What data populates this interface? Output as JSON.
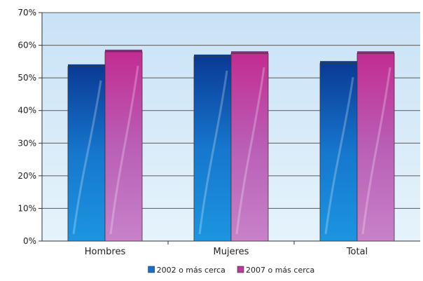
{
  "chart_data": {
    "type": "bar",
    "categories": [
      "Hombres",
      "Mujeres",
      "Total"
    ],
    "series": [
      {
        "name": "2002 o más cerca",
        "values": [
          53.5,
          56.5,
          54.5
        ],
        "color": "#1a6fc4"
      },
      {
        "name": "2007 o más cerca",
        "values": [
          58,
          57.5,
          57.5
        ],
        "color": "#b93a98"
      }
    ],
    "ylim": [
      0,
      70
    ],
    "yticks": [
      "0%",
      "10%",
      "20%",
      "30%",
      "40%",
      "50%",
      "60%",
      "70%"
    ],
    "ytick_values": [
      0,
      10,
      20,
      30,
      40,
      50,
      60,
      70
    ],
    "grid": true,
    "legend_position": "bottom",
    "colors": {
      "plot_bg_top": "#cfe6f7",
      "plot_bg_bottom": "#e3f1fb",
      "grid": "#5a5a5a"
    }
  }
}
